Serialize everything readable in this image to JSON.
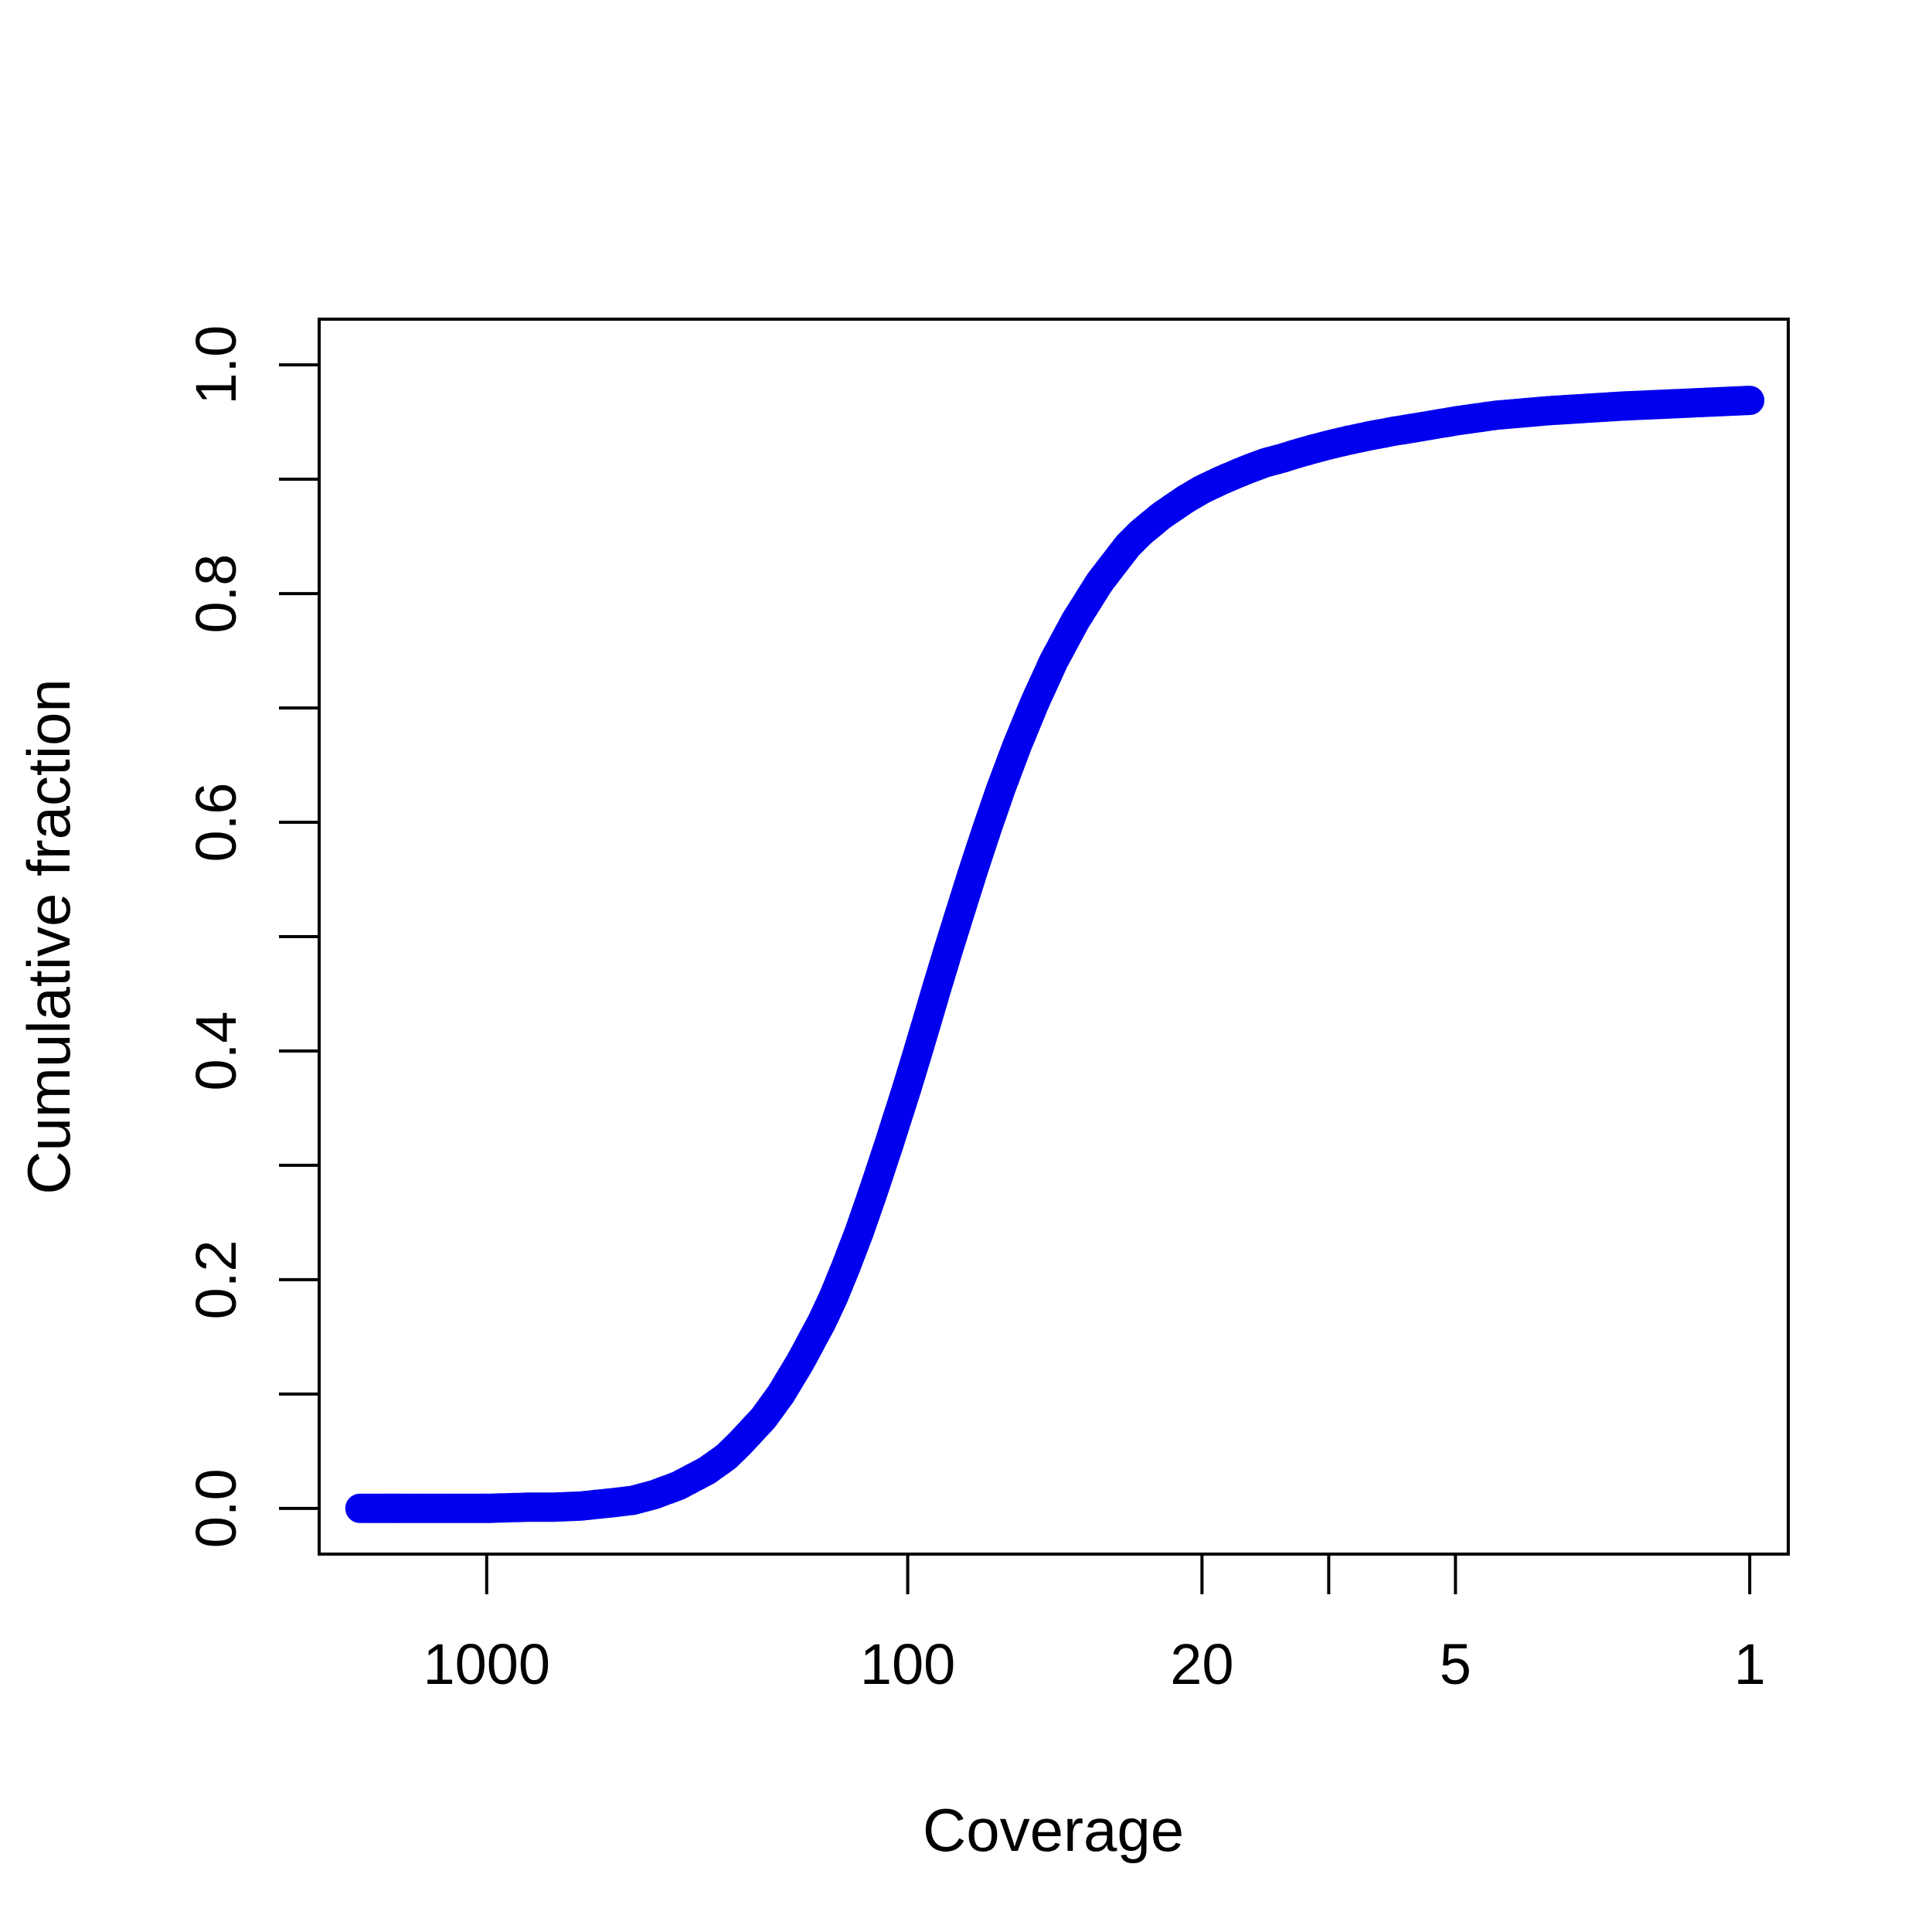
{
  "chart_data": {
    "type": "scatter",
    "title": "",
    "xlabel": "Coverage",
    "ylabel": "Cumulative fraction",
    "x_scale": "log",
    "x_reversed": true,
    "xlim": [
      2500,
      0.81
    ],
    "ylim": [
      -0.04,
      1.04
    ],
    "x_ticks": [
      {
        "value": 1000,
        "label": "1000"
      },
      {
        "value": 100,
        "label": "100"
      },
      {
        "value": 20,
        "label": "20"
      },
      {
        "value": 10,
        "label": ""
      },
      {
        "value": 5,
        "label": "5"
      },
      {
        "value": 1,
        "label": "1"
      }
    ],
    "y_ticks": [
      {
        "value": 0.0,
        "label": "0.0"
      },
      {
        "value": 0.1,
        "label": ""
      },
      {
        "value": 0.2,
        "label": "0.2"
      },
      {
        "value": 0.3,
        "label": ""
      },
      {
        "value": 0.4,
        "label": "0.4"
      },
      {
        "value": 0.5,
        "label": ""
      },
      {
        "value": 0.6,
        "label": "0.6"
      },
      {
        "value": 0.7,
        "label": ""
      },
      {
        "value": 0.8,
        "label": "0.8"
      },
      {
        "value": 0.9,
        "label": ""
      },
      {
        "value": 1.0,
        "label": "1.0"
      }
    ],
    "grid": false,
    "marker": "open-circle",
    "colors": {
      "points": "#0000ee",
      "axes": "#000000"
    },
    "series": [
      {
        "x": [
          2000,
          1500,
          1200,
          1000,
          800,
          700,
          600,
          500,
          450,
          400,
          350,
          300,
          270,
          250,
          220,
          200,
          180,
          160,
          150,
          140,
          130,
          120,
          110,
          100,
          95,
          90,
          85,
          80,
          75,
          70,
          65,
          60,
          55,
          50,
          45,
          40,
          35,
          30,
          28,
          25,
          22,
          20,
          18,
          16,
          15,
          14,
          13,
          12,
          11,
          10,
          9,
          8,
          7,
          6,
          5,
          4,
          3,
          2,
          1
        ],
        "y": [
          0.0,
          0.0,
          0.0,
          0.0,
          0.001,
          0.001,
          0.002,
          0.005,
          0.007,
          0.012,
          0.02,
          0.033,
          0.045,
          0.057,
          0.079,
          0.1,
          0.128,
          0.163,
          0.185,
          0.212,
          0.243,
          0.28,
          0.322,
          0.37,
          0.397,
          0.426,
          0.457,
          0.489,
          0.522,
          0.557,
          0.593,
          0.63,
          0.667,
          0.704,
          0.741,
          0.776,
          0.81,
          0.842,
          0.853,
          0.868,
          0.882,
          0.891,
          0.899,
          0.907,
          0.911,
          0.915,
          0.918,
          0.922,
          0.926,
          0.93,
          0.934,
          0.938,
          0.942,
          0.946,
          0.951,
          0.956,
          0.96,
          0.964,
          0.969
        ]
      }
    ]
  }
}
